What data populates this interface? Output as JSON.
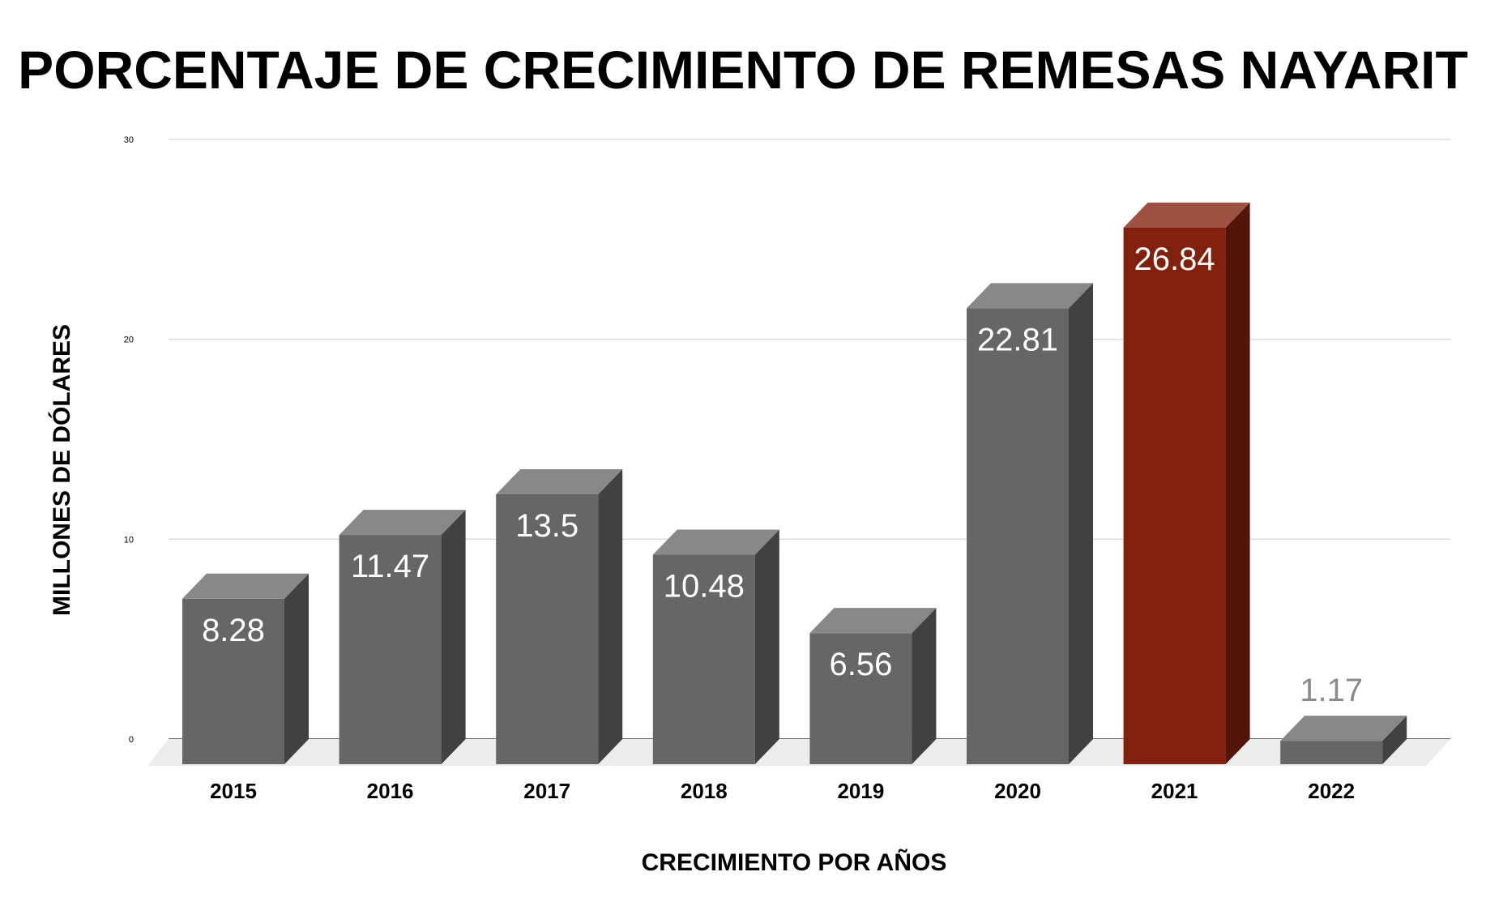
{
  "chart_data": {
    "type": "bar",
    "title": "PORCENTAJE DE CRECIMIENTO DE REMESAS NAYARIT",
    "xlabel": "CRECIMIENTO POR AÑOS",
    "ylabel": "MILLONES DE DÓLARES",
    "categories": [
      "2015",
      "2016",
      "2017",
      "2018",
      "2019",
      "2020",
      "2021",
      "2022"
    ],
    "values": [
      8.28,
      11.47,
      13.5,
      10.48,
      6.56,
      22.81,
      26.84,
      1.17
    ],
    "value_labels": [
      "8.28",
      "11.47",
      "13.5",
      "10.48",
      "6.56",
      "22.81",
      "26.84",
      "1.17"
    ],
    "ylim": [
      0,
      30
    ],
    "yticks": [
      0,
      10,
      20,
      30
    ],
    "ytick_labels": [
      "0",
      "10",
      "20",
      "30"
    ],
    "grid": true,
    "style": "3d-column",
    "bar_color": "#666666",
    "highlight_category": "2021",
    "highlight_color": "#82200e"
  }
}
